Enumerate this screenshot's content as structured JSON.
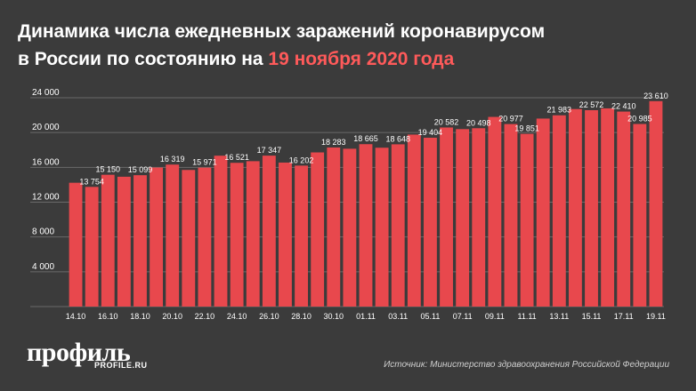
{
  "title": {
    "line1": "Динамика числа ежедневных заражений коронавирусом",
    "line2_prefix": "в России по состоянию на ",
    "line2_highlight": "19 ноября 2020 года"
  },
  "colors": {
    "background": "#3b3b3b",
    "bar": "#e8484d",
    "highlight": "#ff5a5a",
    "grid": "#6a6a6a",
    "text": "#ffffff"
  },
  "chart_data": {
    "type": "bar",
    "title": "Динамика числа ежедневных заражений коронавирусом в России по состоянию на 19 ноября 2020 года",
    "xlabel": "",
    "ylabel": "",
    "ylim": [
      0,
      24000
    ],
    "yticks": [
      4000,
      8000,
      12000,
      16000,
      20000,
      24000
    ],
    "ytick_labels": [
      "4 000",
      "8 000",
      "12 000",
      "16 000",
      "20 000",
      "24 000"
    ],
    "categories": [
      "14.10",
      "15.10",
      "16.10",
      "17.10",
      "18.10",
      "19.10",
      "20.10",
      "21.10",
      "22.10",
      "23.10",
      "24.10",
      "25.10",
      "26.10",
      "27.10",
      "28.10",
      "29.10",
      "30.10",
      "31.10",
      "01.11",
      "02.11",
      "03.11",
      "04.11",
      "05.11",
      "06.11",
      "07.11",
      "08.11",
      "09.11",
      "10.11",
      "11.11",
      "12.11",
      "13.11",
      "14.11",
      "15.11",
      "16.11",
      "17.11",
      "18.11",
      "19.11"
    ],
    "values": [
      14231,
      13754,
      15150,
      14922,
      15099,
      15982,
      16319,
      15700,
      15971,
      17340,
      16521,
      16710,
      17347,
      16550,
      16202,
      17717,
      18283,
      18140,
      18665,
      18257,
      18648,
      19768,
      19404,
      20582,
      20396,
      20498,
      21798,
      20977,
      19851,
      21608,
      21983,
      22702,
      22572,
      22778,
      22410,
      20985,
      23610
    ],
    "data_labels": {
      "1": "13 754",
      "2": "15 150",
      "4": "15 099",
      "6": "16 319",
      "8": "15 971",
      "10": "16 521",
      "12": "17 347",
      "14": "16 202",
      "16": "18 283",
      "18": "18 665",
      "20": "18 648",
      "22": "19 404",
      "23": "20 582",
      "25": "20 498",
      "27": "20 977",
      "28": "19 851",
      "30": "21 983",
      "32": "22 572",
      "34": "22 410",
      "35": "20 985",
      "36": "23 610"
    },
    "xtick_labels": {
      "0": "14.10",
      "2": "16.10",
      "4": "18.10",
      "6": "20.10",
      "8": "22.10",
      "10": "24.10",
      "12": "26.10",
      "14": "28.10",
      "16": "30.10",
      "18": "01.11",
      "20": "03.11",
      "22": "05.11",
      "24": "07.11",
      "26": "09.11",
      "28": "11.11",
      "30": "13.11",
      "32": "15.11",
      "34": "17.11",
      "36": "19.11"
    },
    "grid": true,
    "legend": "none"
  },
  "brand": {
    "logo": "профиль",
    "site": "PROFILE.RU"
  },
  "source": "Источник: Министерство здравоохранения Российской Федерации"
}
